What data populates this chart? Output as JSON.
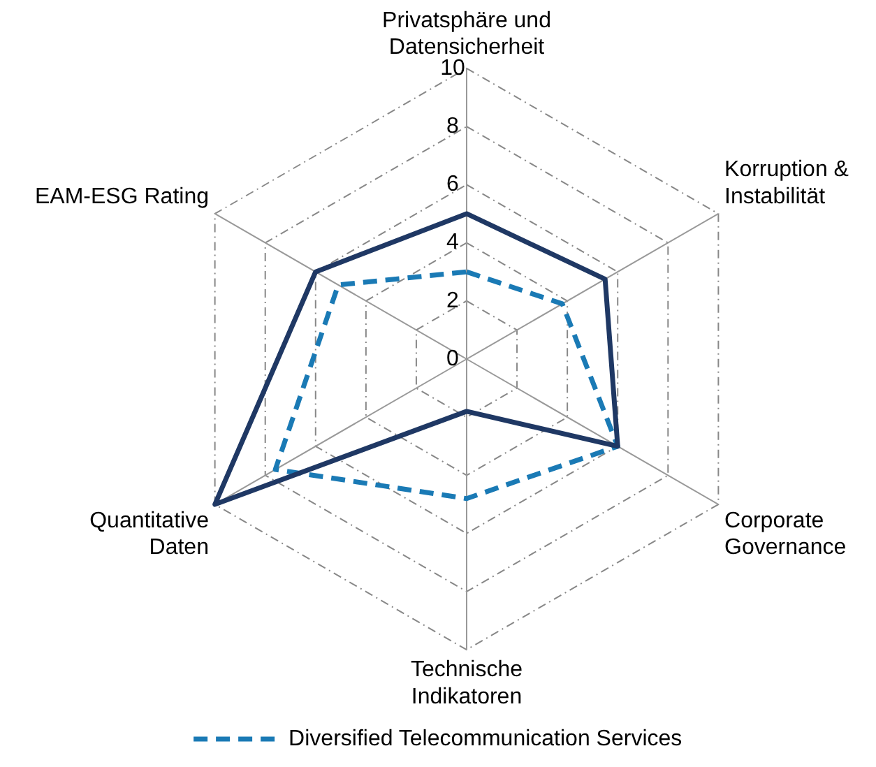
{
  "chart_data": {
    "type": "radar",
    "categories": [
      "Privatsphäre und\nDatensicherheit",
      "Korruption &\nInstabilität",
      "Corporate\nGovernance",
      "Technische\nIndikatoren",
      "Quantitative\nDaten",
      "EAM-ESG Rating"
    ],
    "series": [
      {
        "color": "#1f3864",
        "values": [
          5,
          5.5,
          6,
          1.8,
          10,
          6
        ],
        "line_style": "solid"
      },
      {
        "name": "Diversified Telecommunication Services",
        "color": "#1a7ab5",
        "values": [
          3,
          3.8,
          6,
          4.8,
          7.6,
          5.1
        ],
        "line_style": "dashed"
      }
    ],
    "ylim": [
      0,
      10
    ],
    "yticks": [
      0,
      2,
      4,
      6,
      8,
      10
    ],
    "grid": true,
    "legend": "bottom",
    "marker": "none"
  }
}
